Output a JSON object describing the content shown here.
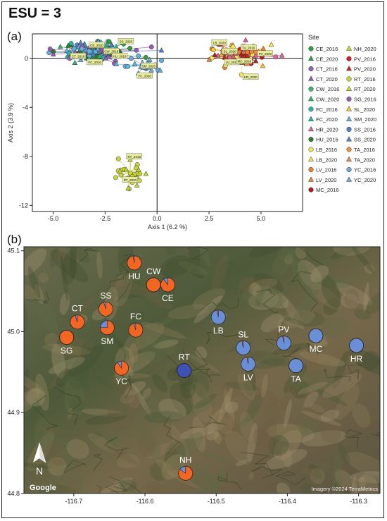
{
  "figure_title": "ESU = 3",
  "panel_a_label": "(a)",
  "panel_b_label": "(b)",
  "chart_data": [
    {
      "type": "scatter",
      "xlabel": "Axis 1 (6.2 %)",
      "ylabel": "Axis 2 (3.9 %)",
      "xlim": [
        -6,
        7
      ],
      "ylim": [
        -12.5,
        2
      ],
      "xticks": [
        "-5.0",
        "-2.5",
        "0.0",
        "2.5",
        "5.0"
      ],
      "yticks": [
        "0",
        "-4",
        "-8",
        "-12"
      ],
      "legend_title": "Site",
      "legend_position": "right",
      "colors": {
        "orange": "#f26522",
        "blue": "#6b8fd6",
        "darkblue": "#3f51b5",
        "lime": "#cddc39",
        "red": "#e53935",
        "pink": "#e0609a",
        "teal": "#26a69a"
      },
      "legend": [
        {
          "label": "CE_2016",
          "color": "#2e9d3a",
          "shape": "circle"
        },
        {
          "label": "NH_2020",
          "color": "#c9d53a",
          "shape": "triangle"
        },
        {
          "label": "CE_2020",
          "color": "#2e9d3a",
          "shape": "triangle"
        },
        {
          "label": "PV_2016",
          "color": "#d81b20",
          "shape": "circle"
        },
        {
          "label": "CT_2016",
          "color": "#8e63b5",
          "shape": "circle"
        },
        {
          "label": "PV_2020",
          "color": "#d81b20",
          "shape": "triangle"
        },
        {
          "label": "CT_2020",
          "color": "#8e63b5",
          "shape": "triangle"
        },
        {
          "label": "RT_2016",
          "color": "#c7d63b",
          "shape": "circle"
        },
        {
          "label": "CW_2016",
          "color": "#3cb371",
          "shape": "circle"
        },
        {
          "label": "RT_2020",
          "color": "#c7d63b",
          "shape": "triangle"
        },
        {
          "label": "CW_2020",
          "color": "#3cb371",
          "shape": "triangle"
        },
        {
          "label": "SG_2016",
          "color": "#9b59b6",
          "shape": "circle"
        },
        {
          "label": "FC_2016",
          "color": "#2bb3a3",
          "shape": "circle"
        },
        {
          "label": "SL_2020",
          "color": "#f6c32b",
          "shape": "triangle"
        },
        {
          "label": "FC_2020",
          "color": "#2bb3a3",
          "shape": "triangle"
        },
        {
          "label": "SM_2020",
          "color": "#5fb3e0",
          "shape": "triangle"
        },
        {
          "label": "HR_2020",
          "color": "#e0609a",
          "shape": "triangle"
        },
        {
          "label": "SS_2016",
          "color": "#4f7fd1",
          "shape": "circle"
        },
        {
          "label": "HU_2016",
          "color": "#2b7d2e",
          "shape": "circle"
        },
        {
          "label": "SS_2020",
          "color": "#4f7fd1",
          "shape": "triangle"
        },
        {
          "label": "LB_2016",
          "color": "#f1e65a",
          "shape": "circle"
        },
        {
          "label": "TA_2016",
          "color": "#f58b3c",
          "shape": "circle"
        },
        {
          "label": "LB_2020",
          "color": "#f1e65a",
          "shape": "triangle"
        },
        {
          "label": "TA_2020",
          "color": "#f58b3c",
          "shape": "triangle"
        },
        {
          "label": "LV_2016",
          "color": "#f08030",
          "shape": "circle"
        },
        {
          "label": "YC_2016",
          "color": "#6fa8dc",
          "shape": "circle"
        },
        {
          "label": "LV_2020",
          "color": "#f08030",
          "shape": "triangle"
        },
        {
          "label": "YC_2020",
          "color": "#6fa8dc",
          "shape": "triangle"
        },
        {
          "label": "MC_2016",
          "color": "#b71c1c",
          "shape": "circle"
        }
      ],
      "clusters": [
        {
          "cx": -3.0,
          "cy": 0.5,
          "sx": 1.5,
          "sy": 0.7,
          "n": 150,
          "colors": [
            "#4f7fd1",
            "#3cb371",
            "#2bb3a3",
            "#6fa8dc",
            "#8e63b5",
            "#9b59b6",
            "#2e9d3a",
            "#2b7d2e",
            "#5fb3e0"
          ]
        },
        {
          "cx": -0.6,
          "cy": -0.6,
          "sx": 1.0,
          "sy": 0.6,
          "n": 20,
          "colors": [
            "#5fb3e0",
            "#6fa8dc"
          ]
        },
        {
          "cx": 4.1,
          "cy": 0.3,
          "sx": 1.1,
          "sy": 0.7,
          "n": 120,
          "colors": [
            "#f08030",
            "#f58b3c",
            "#d81b20",
            "#b71c1c",
            "#f6c32b",
            "#f1e65a",
            "#e0609a"
          ]
        },
        {
          "cx": -1.3,
          "cy": -9.3,
          "sx": 0.9,
          "sy": 1.3,
          "n": 28,
          "colors": [
            "#c7d63b",
            "#c9d53a"
          ]
        }
      ],
      "point_labels": [
        "CE_2020",
        "CT_2016",
        "CW_2016",
        "SS_2020",
        "FC_2016",
        "SM_2020",
        "YC_2020",
        "HU_2016",
        "LB_2020",
        "LV_2016",
        "TA_2016",
        "PV_2020",
        "MC_2016",
        "HR_2020",
        "RT_2016",
        "RT_2020",
        "SL_2020"
      ]
    },
    {
      "type": "map",
      "x_ticks": [
        "-116.7",
        "-116.6",
        "-116.5",
        "-116.4",
        "-116.3"
      ],
      "y_ticks": [
        "45.1",
        "45.0",
        "44.9",
        "44.8"
      ],
      "xlim": [
        -116.77,
        -116.27
      ],
      "ylim": [
        44.8,
        45.105
      ],
      "sites": [
        {
          "name": "HU",
          "lon": -116.615,
          "lat": 45.085,
          "fraction_orange": 0.97,
          "main": "orange"
        },
        {
          "name": "CW",
          "lon": -116.588,
          "lat": 45.058,
          "fraction_orange": 1.0,
          "main": "orange"
        },
        {
          "name": "CE",
          "lon": -116.568,
          "lat": 45.058,
          "fraction_orange": 0.9,
          "main": "orange"
        },
        {
          "name": "SS",
          "lon": -116.655,
          "lat": 45.028,
          "fraction_orange": 0.95,
          "main": "orange"
        },
        {
          "name": "CT",
          "lon": -116.695,
          "lat": 45.012,
          "fraction_orange": 0.95,
          "main": "orange"
        },
        {
          "name": "SM",
          "lon": -116.653,
          "lat": 45.005,
          "fraction_orange": 0.75,
          "main": "orange"
        },
        {
          "name": "FC",
          "lon": -116.613,
          "lat": 45.002,
          "fraction_orange": 0.95,
          "main": "orange"
        },
        {
          "name": "SG",
          "lon": -116.71,
          "lat": 44.993,
          "fraction_orange": 1.0,
          "main": "orange"
        },
        {
          "name": "YC",
          "lon": -116.633,
          "lat": 44.955,
          "fraction_orange": 0.9,
          "main": "orange"
        },
        {
          "name": "LB",
          "lon": -116.497,
          "lat": 45.018,
          "fraction_orange": 0.03,
          "main": "blue"
        },
        {
          "name": "SL",
          "lon": -116.462,
          "lat": 44.98,
          "fraction_orange": 0.03,
          "main": "blue"
        },
        {
          "name": "LV",
          "lon": -116.455,
          "lat": 44.96,
          "fraction_orange": 0.03,
          "main": "blue"
        },
        {
          "name": "PV",
          "lon": -116.405,
          "lat": 44.986,
          "fraction_orange": 0.03,
          "main": "blue"
        },
        {
          "name": "TA",
          "lon": -116.388,
          "lat": 44.958,
          "fraction_orange": 0.0,
          "main": "blue"
        },
        {
          "name": "MC",
          "lon": -116.36,
          "lat": 44.995,
          "fraction_orange": 0.0,
          "main": "blue"
        },
        {
          "name": "HR",
          "lon": -116.303,
          "lat": 44.983,
          "fraction_orange": 0.0,
          "main": "blue"
        },
        {
          "name": "RT",
          "lon": -116.545,
          "lat": 44.952,
          "fraction_orange": 0.0,
          "main": "darkblue"
        },
        {
          "name": "NH",
          "lon": -116.543,
          "lat": 44.825,
          "fraction_orange": 0.85,
          "main": "orange"
        }
      ],
      "north_label": "N",
      "logo": "Google",
      "attribution": "Imagery ©2024 TerraMetrics"
    }
  ]
}
